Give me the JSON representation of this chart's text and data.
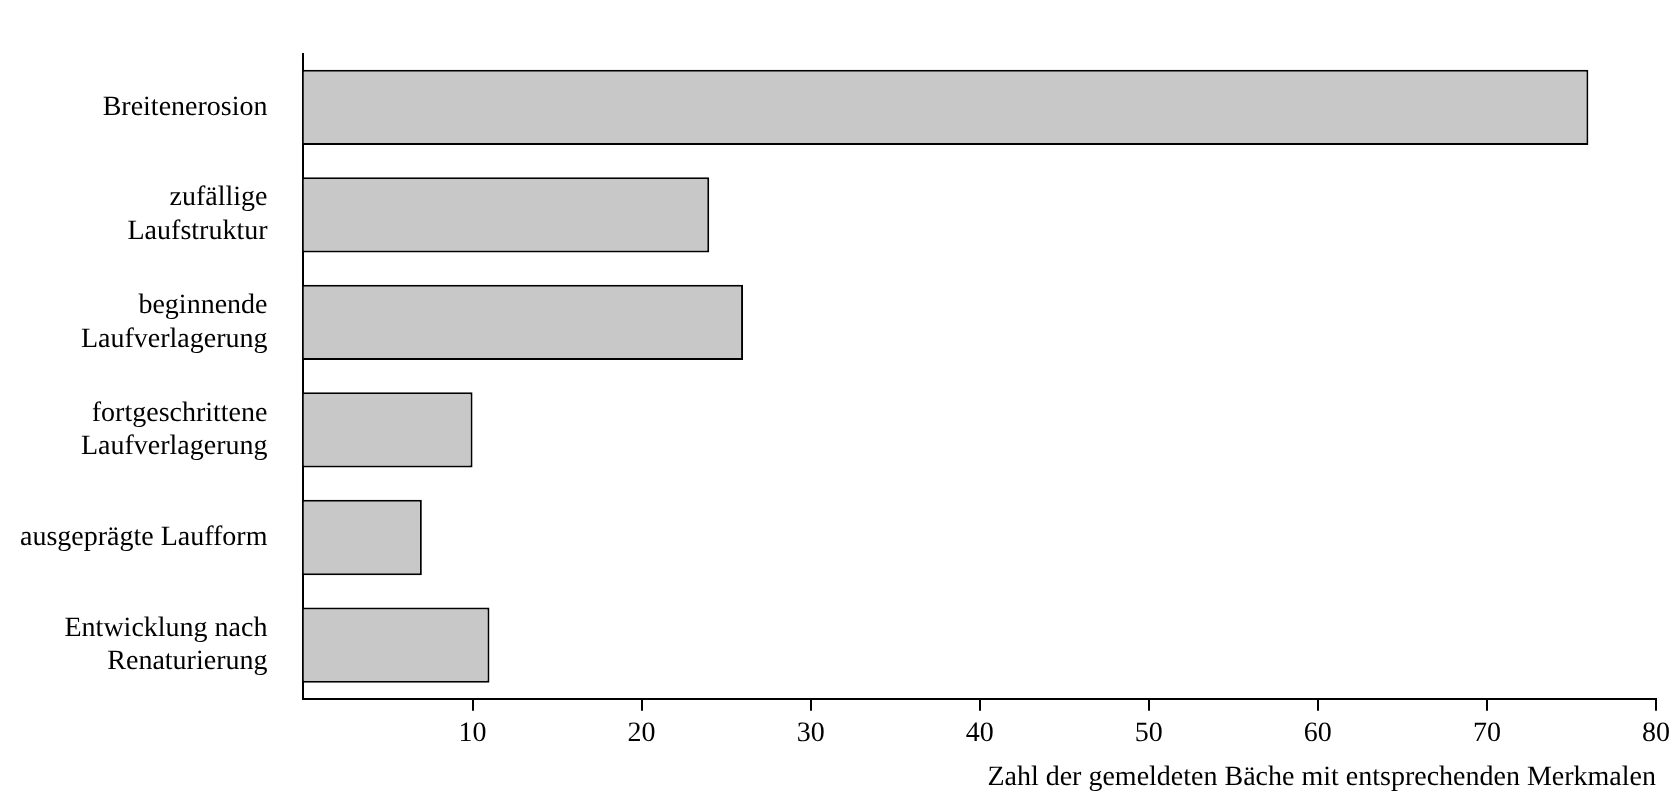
{
  "chart_data": {
    "type": "bar",
    "orientation": "horizontal",
    "categories": [
      "Breitenerosion",
      "zufällige\nLaufstruktur",
      "beginnende\nLaufverlagerung",
      "fortgeschrittene\nLaufverlagerung",
      "ausgeprägte Laufform",
      "Entwicklung nach\nRenaturierung"
    ],
    "values": [
      76,
      24,
      26,
      10,
      7,
      11
    ],
    "color": "#c8c8c8",
    "xlabel": "Zahl der gemeldeten Bäche mit entsprechenden Merkmalen",
    "xlim": [
      0,
      80
    ],
    "xticks": [
      10,
      20,
      30,
      40,
      50,
      60,
      70,
      80
    ],
    "grid": false,
    "legend": false
  }
}
